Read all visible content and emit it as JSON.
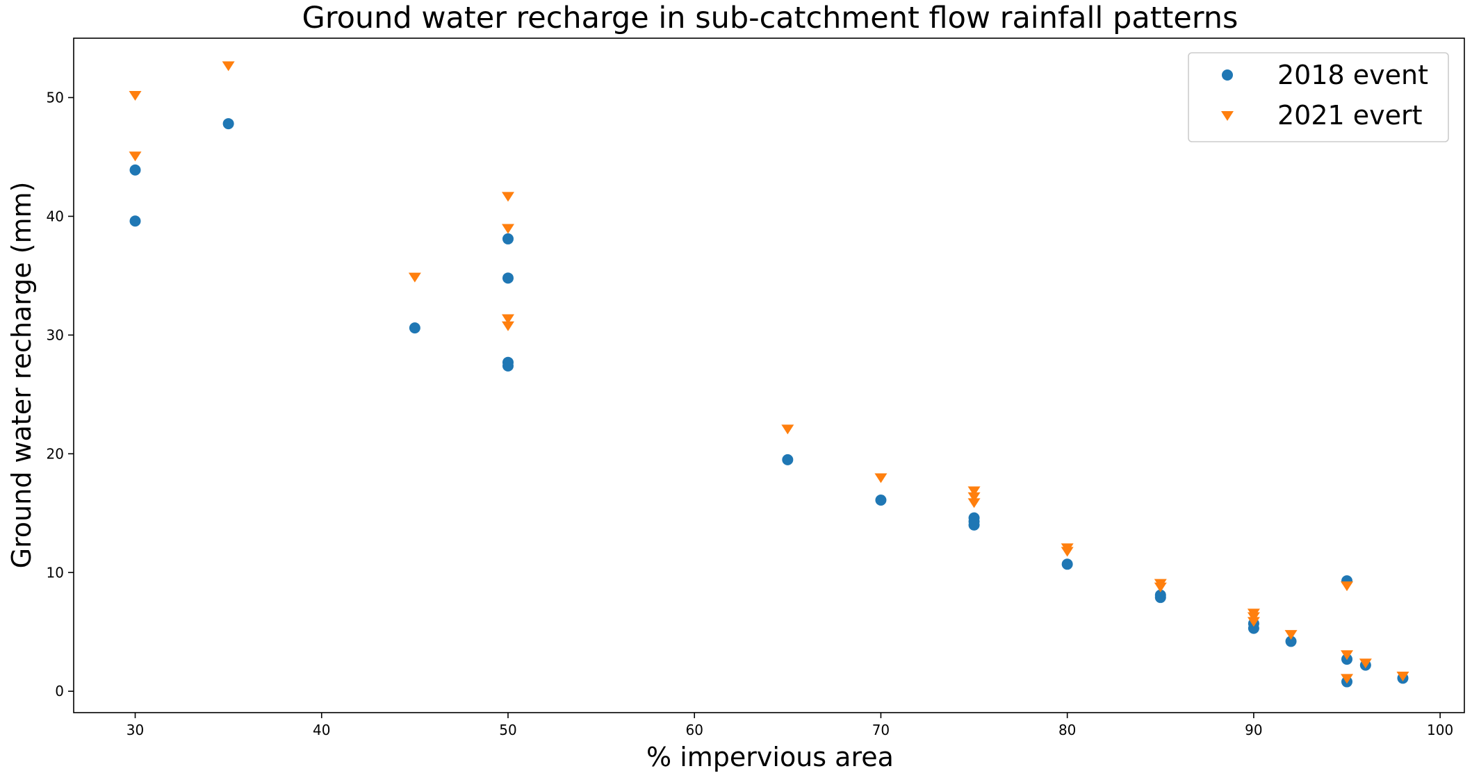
{
  "chart_data": {
    "type": "scatter",
    "title": "Ground water recharge in sub-catchment flow rainfall patterns",
    "xlabel": "% impervious area",
    "ylabel": "Ground water recharge (mm)",
    "xlim": [
      26.7,
      101.3
    ],
    "ylim": [
      -1.8,
      55.0
    ],
    "xticks": [
      30,
      40,
      50,
      60,
      70,
      80,
      90,
      100
    ],
    "yticks": [
      0,
      10,
      20,
      30,
      40,
      50
    ],
    "grid": false,
    "legend_position": "top-right",
    "series": [
      {
        "name": "2018 event",
        "marker": "circle",
        "color": "#1f77b4",
        "points": [
          {
            "x": 30,
            "y": 43.9
          },
          {
            "x": 30,
            "y": 39.6
          },
          {
            "x": 35,
            "y": 47.8
          },
          {
            "x": 45,
            "y": 30.6
          },
          {
            "x": 50,
            "y": 38.1
          },
          {
            "x": 50,
            "y": 34.8
          },
          {
            "x": 50,
            "y": 27.7
          },
          {
            "x": 50,
            "y": 27.4
          },
          {
            "x": 65,
            "y": 19.5
          },
          {
            "x": 70,
            "y": 16.1
          },
          {
            "x": 75,
            "y": 14.6
          },
          {
            "x": 75,
            "y": 14.3
          },
          {
            "x": 75,
            "y": 14.0
          },
          {
            "x": 80,
            "y": 10.7
          },
          {
            "x": 85,
            "y": 8.1
          },
          {
            "x": 85,
            "y": 7.9
          },
          {
            "x": 90,
            "y": 5.7
          },
          {
            "x": 90,
            "y": 5.3
          },
          {
            "x": 92,
            "y": 4.2
          },
          {
            "x": 95,
            "y": 9.3
          },
          {
            "x": 95,
            "y": 2.7
          },
          {
            "x": 95,
            "y": 0.8
          },
          {
            "x": 96,
            "y": 2.2
          },
          {
            "x": 98,
            "y": 1.1
          }
        ]
      },
      {
        "name": "2021 evert",
        "marker": "triangle-down",
        "color": "#ff7f0e",
        "points": [
          {
            "x": 30,
            "y": 50.2
          },
          {
            "x": 30,
            "y": 45.1
          },
          {
            "x": 35,
            "y": 52.7
          },
          {
            "x": 45,
            "y": 34.9
          },
          {
            "x": 50,
            "y": 41.7
          },
          {
            "x": 50,
            "y": 39.0
          },
          {
            "x": 50,
            "y": 31.4
          },
          {
            "x": 50,
            "y": 30.8
          },
          {
            "x": 65,
            "y": 22.1
          },
          {
            "x": 70,
            "y": 18.0
          },
          {
            "x": 75,
            "y": 16.9
          },
          {
            "x": 75,
            "y": 16.4
          },
          {
            "x": 75,
            "y": 15.9
          },
          {
            "x": 80,
            "y": 12.1
          },
          {
            "x": 80,
            "y": 11.8
          },
          {
            "x": 85,
            "y": 9.1
          },
          {
            "x": 85,
            "y": 8.8
          },
          {
            "x": 90,
            "y": 6.6
          },
          {
            "x": 90,
            "y": 6.3
          },
          {
            "x": 90,
            "y": 5.9
          },
          {
            "x": 92,
            "y": 4.8
          },
          {
            "x": 95,
            "y": 8.9
          },
          {
            "x": 95,
            "y": 3.1
          },
          {
            "x": 95,
            "y": 1.1
          },
          {
            "x": 96,
            "y": 2.4
          },
          {
            "x": 98,
            "y": 1.3
          }
        ]
      }
    ]
  }
}
